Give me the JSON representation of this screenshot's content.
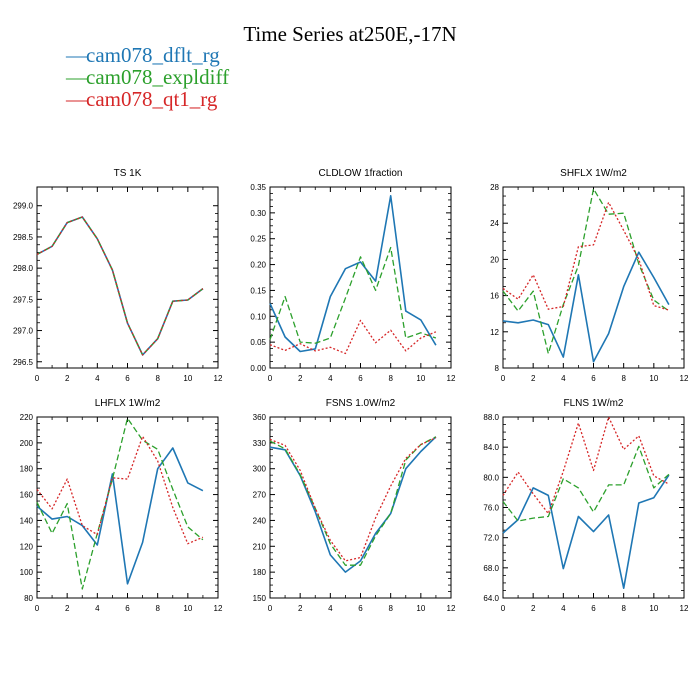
{
  "title": "Time Series at250E,-17N",
  "legend": [
    {
      "name": "cam078_dflt_rg",
      "color": "#1f77b4"
    },
    {
      "name": "cam078_expldiff",
      "color": "#2ca02c"
    },
    {
      "name": "cam078_qt1_rg",
      "color": "#d62728"
    }
  ],
  "chart_data": [
    {
      "type": "line",
      "title": "TS   1K",
      "x": [
        0,
        1,
        2,
        3,
        4,
        5,
        6,
        7,
        8,
        9,
        10,
        11
      ],
      "xlim": [
        0,
        12
      ],
      "xticks": [
        0,
        2,
        4,
        6,
        8,
        10,
        12
      ],
      "xtick_labels": [
        "0",
        "2",
        "4",
        "6",
        "8",
        "10",
        "12"
      ],
      "ylim": [
        296.4,
        299.3
      ],
      "yticks": [
        296.5,
        297.0,
        297.5,
        298.0,
        298.5,
        299.0
      ],
      "ytick_labels": [
        "296.5",
        "297.0",
        "297.5",
        "298.0",
        "298.5",
        "299.0"
      ],
      "series": [
        {
          "values": [
            298.22,
            298.35,
            298.73,
            298.82,
            298.47,
            297.97,
            297.12,
            296.61,
            296.87,
            297.47,
            297.49,
            297.67
          ]
        },
        {
          "values": [
            298.22,
            298.35,
            298.73,
            298.82,
            298.47,
            297.97,
            297.12,
            296.61,
            296.87,
            297.47,
            297.49,
            297.67
          ]
        },
        {
          "values": [
            298.22,
            298.35,
            298.73,
            298.82,
            298.47,
            297.97,
            297.12,
            296.61,
            296.87,
            297.47,
            297.49,
            297.67
          ]
        }
      ]
    },
    {
      "type": "line",
      "title": "CLDLOW   1fraction",
      "x": [
        0,
        1,
        2,
        3,
        4,
        5,
        6,
        7,
        8,
        9,
        10,
        11
      ],
      "xlim": [
        0,
        12
      ],
      "xticks": [
        0,
        2,
        4,
        6,
        8,
        10,
        12
      ],
      "xtick_labels": [
        "0",
        "2",
        "4",
        "6",
        "8",
        "10",
        "12"
      ],
      "ylim": [
        0,
        0.35
      ],
      "yticks": [
        0,
        0.05,
        0.1,
        0.15,
        0.2,
        0.25,
        0.3,
        0.35
      ],
      "ytick_labels": [
        "0.00",
        "0.05",
        "0.10",
        "0.15",
        "0.20",
        "0.25",
        "0.30",
        "0.35"
      ],
      "series": [
        {
          "values": [
            0.125,
            0.06,
            0.032,
            0.037,
            0.138,
            0.192,
            0.205,
            0.168,
            0.333,
            0.11,
            0.093,
            0.044
          ]
        },
        {
          "values": [
            0.055,
            0.138,
            0.05,
            0.048,
            0.058,
            0.135,
            0.215,
            0.15,
            0.233,
            0.058,
            0.068,
            0.058
          ]
        },
        {
          "values": [
            0.045,
            0.034,
            0.047,
            0.033,
            0.04,
            0.028,
            0.092,
            0.049,
            0.073,
            0.033,
            0.058,
            0.07
          ]
        }
      ]
    },
    {
      "type": "line",
      "title": "SHFLX   1W/m2",
      "x": [
        0,
        1,
        2,
        3,
        4,
        5,
        6,
        7,
        8,
        9,
        10,
        11
      ],
      "xlim": [
        0,
        12
      ],
      "xticks": [
        0,
        2,
        4,
        6,
        8,
        10,
        12
      ],
      "xtick_labels": [
        "0",
        "2",
        "4",
        "6",
        "8",
        "10",
        "12"
      ],
      "ylim": [
        8,
        28
      ],
      "yticks": [
        8,
        12,
        16,
        20,
        24,
        28
      ],
      "ytick_labels": [
        "8",
        "12",
        "16",
        "20",
        "24",
        "28"
      ],
      "series": [
        {
          "values": [
            13.2,
            13.0,
            13.3,
            12.8,
            9.2,
            18.3,
            8.7,
            11.8,
            17.0,
            20.8,
            18.0,
            15.0
          ]
        },
        {
          "values": [
            16.5,
            14.3,
            16.5,
            9.6,
            15.0,
            19.3,
            27.8,
            25.0,
            25.1,
            19.5,
            15.5,
            14.3
          ]
        },
        {
          "values": [
            16.8,
            15.6,
            18.3,
            14.5,
            14.8,
            21.4,
            21.6,
            26.3,
            23.2,
            20.0,
            14.9,
            14.4
          ]
        }
      ]
    },
    {
      "type": "line",
      "title": "LHFLX   1W/m2",
      "x": [
        0,
        1,
        2,
        3,
        4,
        5,
        6,
        7,
        8,
        9,
        10,
        11
      ],
      "xlim": [
        0,
        12
      ],
      "xticks": [
        0,
        2,
        4,
        6,
        8,
        10,
        12
      ],
      "xtick_labels": [
        "0",
        "2",
        "4",
        "6",
        "8",
        "10",
        "12"
      ],
      "ylim": [
        80,
        220
      ],
      "yticks": [
        80,
        100,
        120,
        140,
        160,
        180,
        200,
        220
      ],
      "ytick_labels": [
        "80",
        "100",
        "120",
        "140",
        "160",
        "180",
        "200",
        "220"
      ],
      "series": [
        {
          "values": [
            151,
            141,
            143,
            136,
            121,
            176,
            91,
            123,
            180,
            196,
            169,
            163
          ]
        },
        {
          "values": [
            154,
            130,
            153,
            87,
            130,
            172,
            219,
            202,
            195,
            164,
            135,
            125
          ]
        },
        {
          "values": [
            164,
            149,
            172,
            136,
            129,
            173,
            172,
            205,
            186,
            150,
            122,
            127
          ]
        }
      ]
    },
    {
      "type": "line",
      "title": "FSNS   1.0W/m2",
      "x": [
        0,
        1,
        2,
        3,
        4,
        5,
        6,
        7,
        8,
        9,
        10,
        11
      ],
      "xlim": [
        0,
        12
      ],
      "xticks": [
        0,
        2,
        4,
        6,
        8,
        10,
        12
      ],
      "xtick_labels": [
        "0",
        "2",
        "4",
        "6",
        "8",
        "10",
        "12"
      ],
      "ylim": [
        150,
        360
      ],
      "yticks": [
        150,
        180,
        210,
        240,
        270,
        300,
        330,
        360
      ],
      "ytick_labels": [
        "150",
        "180",
        "210",
        "240",
        "270",
        "300",
        "330",
        "360"
      ],
      "series": [
        {
          "values": [
            325,
            322,
            292,
            250,
            200,
            180,
            193,
            225,
            248,
            300,
            320,
            337
          ]
        },
        {
          "values": [
            332,
            323,
            293,
            254,
            213,
            188,
            188,
            222,
            248,
            310,
            328,
            337
          ]
        },
        {
          "values": [
            334,
            327,
            298,
            254,
            217,
            193,
            197,
            243,
            280,
            312,
            328,
            336
          ]
        }
      ]
    },
    {
      "type": "line",
      "title": "FLNS   1W/m2",
      "x": [
        0,
        1,
        2,
        3,
        4,
        5,
        6,
        7,
        8,
        9,
        10,
        11
      ],
      "xlim": [
        0,
        12
      ],
      "xticks": [
        0,
        2,
        4,
        6,
        8,
        10,
        12
      ],
      "xtick_labels": [
        "0",
        "2",
        "4",
        "6",
        "8",
        "10",
        "12"
      ],
      "ylim": [
        64,
        88
      ],
      "yticks": [
        64,
        68,
        72,
        76,
        80,
        84,
        88
      ],
      "ytick_labels": [
        "64.0",
        "68.0",
        "72.0",
        "76.0",
        "80.0",
        "84.0",
        "88.0"
      ],
      "series": [
        {
          "values": [
            72.6,
            74.4,
            78.6,
            77.6,
            67.9,
            74.8,
            72.8,
            75.0,
            65.3,
            76.6,
            77.3,
            80.3
          ]
        },
        {
          "values": [
            76.8,
            74.2,
            74.6,
            74.8,
            79.8,
            78.6,
            75.4,
            79.0,
            79.0,
            84.1,
            78.6,
            80.4
          ]
        },
        {
          "values": [
            77.6,
            80.7,
            77.8,
            75.2,
            80.8,
            87.2,
            80.9,
            88.0,
            83.7,
            85.5,
            80.2,
            79.1
          ]
        }
      ]
    }
  ]
}
